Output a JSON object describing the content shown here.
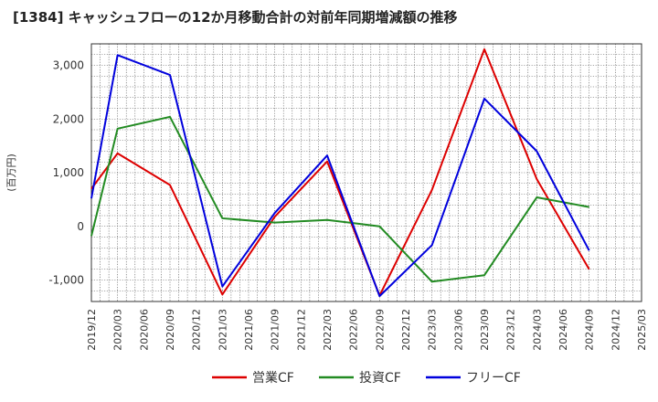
{
  "title": "[1384]  キャッシュフローの12か月移動合計の対前年同期増減額の推移",
  "chart_data": {
    "type": "line",
    "title": "[1384]  キャッシュフローの12か月移動合計の対前年同期増減額の推移",
    "ylabel": "(百万円)",
    "xlabel": "",
    "ylim": [
      -1400,
      3400
    ],
    "yticks": [
      -1000,
      0,
      1000,
      2000,
      3000
    ],
    "ytick_labels": [
      "-1,000",
      "0",
      "1,000",
      "2,000",
      "3,000"
    ],
    "x_ticks": [
      "2019/12",
      "2020/03",
      "2020/06",
      "2020/09",
      "2020/12",
      "2021/03",
      "2021/06",
      "2021/09",
      "2021/12",
      "2022/03",
      "2022/06",
      "2022/09",
      "2022/12",
      "2023/03",
      "2023/06",
      "2023/09",
      "2023/12",
      "2024/03",
      "2024/06",
      "2024/09",
      "2024/12",
      "2025/03"
    ],
    "grid": true,
    "legend_position": "bottom",
    "series": [
      {
        "name": "営業CF",
        "color": "#dd0000",
        "points": [
          [
            "2019/12",
            700
          ],
          [
            "2020/03",
            1360
          ],
          [
            "2020/09",
            770
          ],
          [
            "2021/03",
            -1270
          ],
          [
            "2021/09",
            180
          ],
          [
            "2022/03",
            1210
          ],
          [
            "2022/09",
            -1290
          ],
          [
            "2023/03",
            680
          ],
          [
            "2023/09",
            3300
          ],
          [
            "2024/03",
            880
          ],
          [
            "2024/09",
            -800
          ]
        ]
      },
      {
        "name": "投資CF",
        "color": "#228b22",
        "points": [
          [
            "2019/12",
            -180
          ],
          [
            "2020/03",
            1820
          ],
          [
            "2020/09",
            2040
          ],
          [
            "2021/03",
            150
          ],
          [
            "2021/09",
            70
          ],
          [
            "2022/03",
            120
          ],
          [
            "2022/09",
            0
          ],
          [
            "2023/03",
            -1030
          ],
          [
            "2023/09",
            -910
          ],
          [
            "2024/03",
            540
          ],
          [
            "2024/09",
            360
          ]
        ]
      },
      {
        "name": "フリーCF",
        "color": "#0000dd",
        "points": [
          [
            "2019/12",
            520
          ],
          [
            "2020/03",
            3190
          ],
          [
            "2020/09",
            2820
          ],
          [
            "2021/03",
            -1120
          ],
          [
            "2021/09",
            250
          ],
          [
            "2022/03",
            1320
          ],
          [
            "2022/09",
            -1300
          ],
          [
            "2023/03",
            -350
          ],
          [
            "2023/09",
            2380
          ],
          [
            "2024/03",
            1400
          ],
          [
            "2024/09",
            -450
          ]
        ]
      }
    ]
  }
}
